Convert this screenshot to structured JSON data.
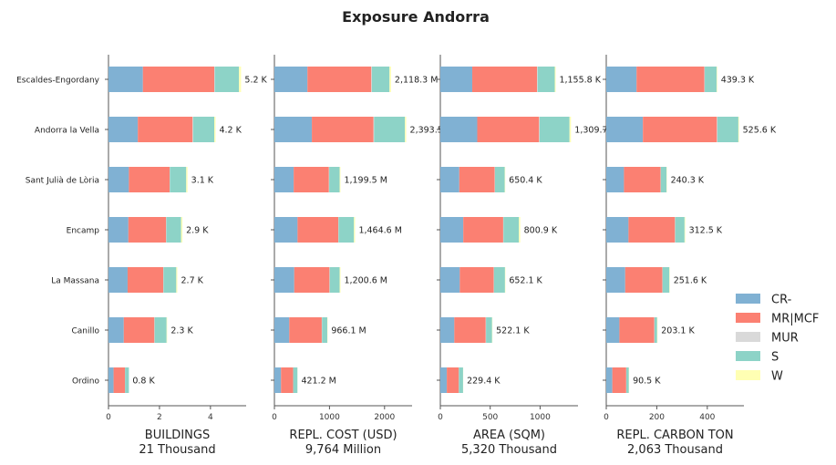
{
  "chart_data": {
    "type": "bar",
    "orientation": "horizontal",
    "stacked": true,
    "title": "Exposure Andorra",
    "categories": [
      "Escaldes-Engordany",
      "Andorra la Vella",
      "Sant Julià de Lòria",
      "Encamp",
      "La Massana",
      "Canillo",
      "Ordino"
    ],
    "legend": {
      "position": "right",
      "entries": [
        {
          "name": "CR-",
          "color": "#80b1d3"
        },
        {
          "name": "MR|MCF",
          "color": "#fb8072"
        },
        {
          "name": "MUR",
          "color": "#d9d9d9"
        },
        {
          "name": "S",
          "color": "#8dd3c7"
        },
        {
          "name": "W",
          "color": "#ffffb3"
        }
      ]
    },
    "panels": [
      {
        "xlabel": "BUILDINGS",
        "sublabel": "21 Thousand",
        "xlim": [
          0,
          5.4
        ],
        "xticks": [
          0,
          2,
          4
        ],
        "xtick_labels": [
          "0",
          "2",
          "4"
        ],
        "series": [
          {
            "name": "CR-",
            "values": [
              1.35,
              1.15,
              0.8,
              0.78,
              0.75,
              0.6,
              0.2
            ]
          },
          {
            "name": "MR|MCF",
            "values": [
              2.8,
              2.15,
              1.6,
              1.48,
              1.4,
              1.2,
              0.45
            ]
          },
          {
            "name": "MUR",
            "values": [
              0.02,
              0.02,
              0.01,
              0.01,
              0.01,
              0.01,
              0.0
            ]
          },
          {
            "name": "S",
            "values": [
              0.95,
              0.83,
              0.64,
              0.58,
              0.5,
              0.47,
              0.15
            ]
          },
          {
            "name": "W",
            "values": [
              0.08,
              0.05,
              0.05,
              0.05,
              0.04,
              0.02,
              0.0
            ]
          }
        ],
        "labels": [
          "5.2 K",
          "4.2 K",
          "3.1 K",
          "2.9 K",
          "2.7 K",
          "2.3 K",
          "0.8 K"
        ]
      },
      {
        "xlabel": "REPL. COST (USD)",
        "sublabel": "9,764 Million",
        "xlim": [
          0,
          2500
        ],
        "xticks": [
          0,
          1000,
          2000
        ],
        "xtick_labels": [
          "0",
          "1000",
          "2000"
        ],
        "series": [
          {
            "name": "CR-",
            "values": [
              600,
              680,
              350,
              420,
              360,
              270,
              120
            ]
          },
          {
            "name": "MR|MCF",
            "values": [
              1160,
              1120,
              640,
              740,
              640,
              590,
              220
            ]
          },
          {
            "name": "MUR",
            "values": [
              10,
              10,
              5,
              5,
              5,
              5,
              1
            ]
          },
          {
            "name": "S",
            "values": [
              320,
              560,
              190,
              280,
              180,
              95,
              78
            ]
          },
          {
            "name": "W",
            "values": [
              28,
              23,
              14.5,
              19.6,
              15.6,
              6.1,
              2.2
            ]
          }
        ],
        "labels": [
          "2,118.3 M",
          "2,393.5",
          "1,199.5 M",
          "1,464.6 M",
          "1,200.6 M",
          "966.1 M",
          "421.2 M"
        ]
      },
      {
        "xlabel": "AREA (SQM)",
        "sublabel": "5,320 Thousand",
        "xlim": [
          0,
          1380
        ],
        "xticks": [
          0,
          500,
          1000
        ],
        "xtick_labels": [
          "0",
          "500",
          "1000"
        ],
        "series": [
          {
            "name": "CR-",
            "values": [
              320,
              370,
              190,
              230,
              195,
              140,
              65
            ]
          },
          {
            "name": "MR|MCF",
            "values": [
              650,
              620,
              355,
              400,
              340,
              315,
              120
            ]
          },
          {
            "name": "MUR",
            "values": [
              5,
              5,
              3,
              3,
              3,
              3,
              1
            ]
          },
          {
            "name": "S",
            "values": [
              172,
              300,
              98,
              155,
              110,
              61,
              42
            ]
          },
          {
            "name": "W",
            "values": [
              8.8,
              14.7,
              4.4,
              12.9,
              4.1,
              3.2,
              1.4
            ]
          }
        ],
        "labels": [
          "1,155.8 K",
          "1,309.7",
          "650.4 K",
          "800.9 K",
          "652.1 K",
          "522.1 K",
          "229.4 K"
        ]
      },
      {
        "xlabel": "REPL. CARBON TON",
        "sublabel": "2,063 Thousand",
        "xlim": [
          0,
          545
        ],
        "xticks": [
          0,
          200,
          400
        ],
        "xtick_labels": [
          "0",
          "200",
          "400"
        ],
        "series": [
          {
            "name": "CR-",
            "values": [
              120,
              145,
              70,
              88,
              75,
              52,
              24
            ]
          },
          {
            "name": "MR|MCF",
            "values": [
              268,
              293,
              145,
              184,
              147,
              138,
              55
            ]
          },
          {
            "name": "MUR",
            "values": [
              2,
              2,
              1,
              1,
              1,
              1,
              0.5
            ]
          },
          {
            "name": "S",
            "values": [
              47,
              83,
              23,
              37,
              27,
              10.5,
              10
            ]
          },
          {
            "name": "W",
            "values": [
              2.3,
              2.6,
              1.3,
              2.5,
              1.6,
              1.6,
              1.0
            ]
          }
        ],
        "labels": [
          "439.3 K",
          "525.6 K",
          "240.3 K",
          "312.5 K",
          "251.6 K",
          "203.1 K",
          "90.5 K"
        ]
      }
    ]
  }
}
